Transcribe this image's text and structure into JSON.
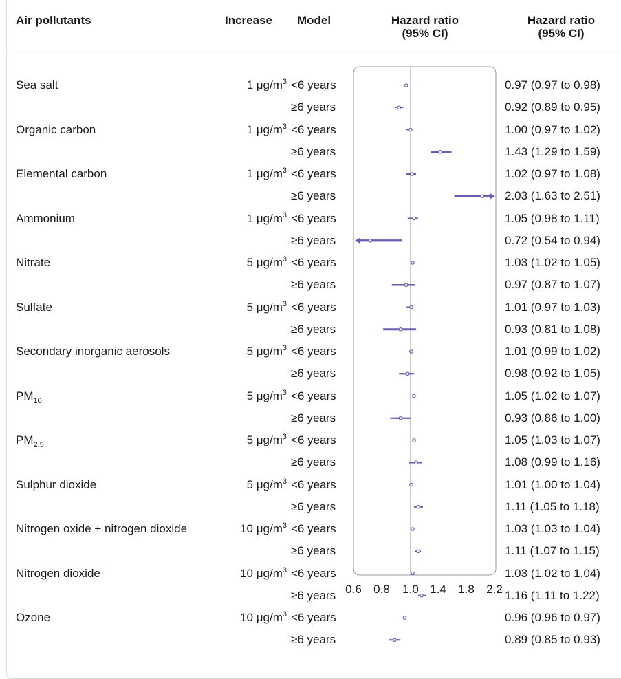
{
  "headers": {
    "pollutants": "Air pollutants",
    "increase": "Increase",
    "model": "Model",
    "hr_plot_line1": "Hazard ratio",
    "hr_plot_line2": "(95% CI)",
    "hr_text_line1": "Hazard ratio",
    "hr_text_line2": "(95% CI)"
  },
  "colors": {
    "marker": "#6a5bb5",
    "frame": "#999999",
    "refline": "#999999"
  },
  "chart_data": {
    "type": "forest",
    "xlim": [
      0.6,
      2.2
    ],
    "reference": 1.0,
    "xticks": [
      "0.6",
      "0.8",
      "1.0",
      "1.4",
      "1.8",
      "2.2"
    ],
    "rows": [
      {
        "pollutant": "Sea salt",
        "pollutant_sub": "",
        "increase_num": "1",
        "increase_unit": "μg/m",
        "increase_sup": "3",
        "models": [
          {
            "model": "<6 years",
            "hr": 0.97,
            "lo": 0.97,
            "hi": 0.98,
            "label": "0.97 (0.97 to 0.98)"
          },
          {
            "model": "≥6 years",
            "hr": 0.92,
            "lo": 0.89,
            "hi": 0.95,
            "label": "0.92 (0.89 to 0.95)"
          }
        ]
      },
      {
        "pollutant": "Organic carbon",
        "pollutant_sub": "",
        "increase_num": "1",
        "increase_unit": "μg/m",
        "increase_sup": "3",
        "models": [
          {
            "model": "<6 years",
            "hr": 1.0,
            "lo": 0.97,
            "hi": 1.02,
            "label": "1.00 (0.97 to 1.02)"
          },
          {
            "model": "≥6 years",
            "hr": 1.43,
            "lo": 1.29,
            "hi": 1.59,
            "label": "1.43 (1.29 to 1.59)"
          }
        ]
      },
      {
        "pollutant": "Elemental carbon",
        "pollutant_sub": "",
        "increase_num": "1",
        "increase_unit": "μg/m",
        "increase_sup": "3",
        "models": [
          {
            "model": "<6 years",
            "hr": 1.02,
            "lo": 0.97,
            "hi": 1.08,
            "label": "1.02 (0.97 to 1.08)"
          },
          {
            "model": "≥6 years",
            "hr": 2.03,
            "lo": 1.63,
            "hi": 2.51,
            "label": "2.03 (1.63 to 2.51)"
          }
        ]
      },
      {
        "pollutant": "Ammonium",
        "pollutant_sub": "",
        "increase_num": "1",
        "increase_unit": "μg/m",
        "increase_sup": "3",
        "models": [
          {
            "model": "<6 years",
            "hr": 1.05,
            "lo": 0.98,
            "hi": 1.11,
            "label": "1.05 (0.98 to 1.11)"
          },
          {
            "model": "≥6 years",
            "hr": 0.72,
            "lo": 0.54,
            "hi": 0.94,
            "label": "0.72 (0.54 to 0.94)"
          }
        ]
      },
      {
        "pollutant": "Nitrate",
        "pollutant_sub": "",
        "increase_num": "5",
        "increase_unit": "μg/m",
        "increase_sup": "3",
        "models": [
          {
            "model": "<6 years",
            "hr": 1.03,
            "lo": 1.02,
            "hi": 1.05,
            "label": "1.03 (1.02 to 1.05)"
          },
          {
            "model": "≥6 years",
            "hr": 0.97,
            "lo": 0.87,
            "hi": 1.07,
            "label": "0.97 (0.87 to 1.07)"
          }
        ]
      },
      {
        "pollutant": "Sulfate",
        "pollutant_sub": "",
        "increase_num": "5",
        "increase_unit": "μg/m",
        "increase_sup": "3",
        "models": [
          {
            "model": "<6 years",
            "hr": 1.01,
            "lo": 0.97,
            "hi": 1.03,
            "label": "1.01 (0.97 to 1.03)"
          },
          {
            "model": "≥6 years",
            "hr": 0.93,
            "lo": 0.81,
            "hi": 1.08,
            "label": "0.93 (0.81 to 1.08)"
          }
        ]
      },
      {
        "pollutant": "Secondary inorganic aerosols",
        "pollutant_sub": "",
        "increase_num": "5",
        "increase_unit": "μg/m",
        "increase_sup": "3",
        "models": [
          {
            "model": "<6 years",
            "hr": 1.01,
            "lo": 0.99,
            "hi": 1.02,
            "label": "1.01 (0.99 to 1.02)"
          },
          {
            "model": "≥6 years",
            "hr": 0.98,
            "lo": 0.92,
            "hi": 1.05,
            "label": "0.98 (0.92 to 1.05)"
          }
        ]
      },
      {
        "pollutant": "PM",
        "pollutant_sub": "10",
        "increase_num": "5",
        "increase_unit": "μg/m",
        "increase_sup": "3",
        "models": [
          {
            "model": "<6 years",
            "hr": 1.05,
            "lo": 1.02,
            "hi": 1.07,
            "label": "1.05 (1.02 to 1.07)"
          },
          {
            "model": "≥6 years",
            "hr": 0.93,
            "lo": 0.86,
            "hi": 1.0,
            "label": "0.93 (0.86 to 1.00)"
          }
        ]
      },
      {
        "pollutant": "PM",
        "pollutant_sub": "2.5",
        "increase_num": "5",
        "increase_unit": "μg/m",
        "increase_sup": "3",
        "models": [
          {
            "model": "<6 years",
            "hr": 1.05,
            "lo": 1.03,
            "hi": 1.07,
            "label": "1.05 (1.03 to 1.07)"
          },
          {
            "model": "≥6 years",
            "hr": 1.08,
            "lo": 0.99,
            "hi": 1.16,
            "label": "1.08 (0.99 to 1.16)"
          }
        ]
      },
      {
        "pollutant": "Sulphur dioxide",
        "pollutant_sub": "",
        "increase_num": "5",
        "increase_unit": "μg/m",
        "increase_sup": "3",
        "models": [
          {
            "model": "<6 years",
            "hr": 1.01,
            "lo": 1.0,
            "hi": 1.04,
            "label": "1.01 (1.00 to 1.04)"
          },
          {
            "model": "≥6 years",
            "hr": 1.11,
            "lo": 1.05,
            "hi": 1.18,
            "label": "1.11 (1.05 to 1.18)"
          }
        ]
      },
      {
        "pollutant": "Nitrogen oxide + nitrogen dioxide",
        "pollutant_sub": "",
        "increase_num": "10",
        "increase_unit": "μg/m",
        "increase_sup": "3",
        "models": [
          {
            "model": "<6 years",
            "hr": 1.03,
            "lo": 1.03,
            "hi": 1.04,
            "label": "1.03 (1.03 to 1.04)"
          },
          {
            "model": "≥6 years",
            "hr": 1.11,
            "lo": 1.07,
            "hi": 1.15,
            "label": "1.11 (1.07 to 1.15)"
          }
        ]
      },
      {
        "pollutant": "Nitrogen dioxide",
        "pollutant_sub": "",
        "increase_num": "10",
        "increase_unit": "μg/m",
        "increase_sup": "3",
        "models": [
          {
            "model": "<6 years",
            "hr": 1.03,
            "lo": 1.02,
            "hi": 1.04,
            "label": "1.03 (1.02 to 1.04)"
          },
          {
            "model": "≥6 years",
            "hr": 1.16,
            "lo": 1.11,
            "hi": 1.22,
            "label": "1.16 (1.11 to 1.22)"
          }
        ]
      },
      {
        "pollutant": "Ozone",
        "pollutant_sub": "",
        "increase_num": "10",
        "increase_unit": "μg/m",
        "increase_sup": "3",
        "models": [
          {
            "model": "<6 years",
            "hr": 0.96,
            "lo": 0.96,
            "hi": 0.97,
            "label": "0.96 (0.96 to 0.97)"
          },
          {
            "model": "≥6 years",
            "hr": 0.89,
            "lo": 0.85,
            "hi": 0.93,
            "label": "0.89 (0.85 to 0.93)"
          }
        ]
      }
    ]
  }
}
